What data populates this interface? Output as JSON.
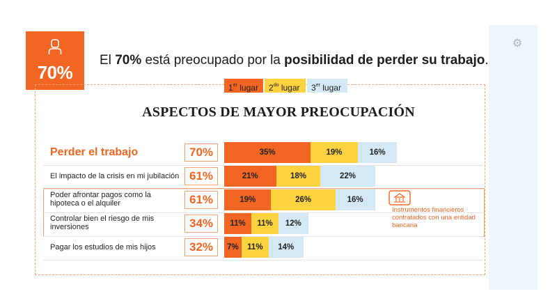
{
  "badge": {
    "value": "70%",
    "icon": "user-icon"
  },
  "headline": {
    "part1": "El ",
    "pct": "70%",
    "part2": " está preocupado por la ",
    "emphasis": "posibilidad de perder su trabajo",
    "end": "."
  },
  "legend": [
    {
      "num": "1",
      "sup": "er",
      "label": " lugar",
      "color": "#f26522"
    },
    {
      "num": "2",
      "sup": "do",
      "label": " lugar",
      "color": "#ffd23f"
    },
    {
      "num": "3",
      "sup": "er",
      "label": " lugar",
      "color": "#d4e9f5"
    }
  ],
  "note": {
    "icon": "bank-icon",
    "text": "Instrumentos financieros contratados con una entidad bancaria"
  },
  "colors": {
    "first": "#f26522",
    "second": "#ffd23f",
    "third": "#d4e9f5",
    "accent": "#f26522"
  },
  "chart_data": {
    "type": "bar",
    "stacked": true,
    "orientation": "horizontal",
    "title": "ASPECTOS DE MAYOR PREOCUPACIÓN",
    "categories": [
      "Perder el trabajo",
      "El impacto de la crisis en mi jubilación",
      "Poder afrontar pagos como la hipoteca o el alquiler",
      "Controlar bien el riesgo de mis inversiones",
      "Pagar los estudios de mis hijos"
    ],
    "totals": [
      "70%",
      "61%",
      "61%",
      "34%",
      "32%"
    ],
    "series": [
      {
        "name": "1er lugar",
        "values": [
          35,
          21,
          19,
          11,
          7
        ]
      },
      {
        "name": "2do lugar",
        "values": [
          19,
          18,
          26,
          11,
          11
        ]
      },
      {
        "name": "3er lugar",
        "values": [
          16,
          22,
          16,
          12,
          14
        ]
      }
    ],
    "grid": false,
    "legend_position": "top"
  }
}
